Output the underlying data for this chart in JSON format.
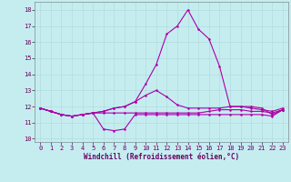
{
  "xlabel": "Windchill (Refroidissement éolien,°C)",
  "bg_color": "#c5edf0",
  "line_color": "#aa00aa",
  "xlim": [
    -0.5,
    23.5
  ],
  "ylim": [
    9.8,
    18.5
  ],
  "yticks": [
    10,
    11,
    12,
    13,
    14,
    15,
    16,
    17,
    18
  ],
  "xticks": [
    0,
    1,
    2,
    3,
    4,
    5,
    6,
    7,
    8,
    9,
    10,
    11,
    12,
    13,
    14,
    15,
    16,
    17,
    18,
    19,
    20,
    21,
    22,
    23
  ],
  "line1_x": [
    0,
    1,
    2,
    3,
    4,
    5,
    6,
    7,
    8,
    9,
    10,
    11,
    12,
    13,
    14,
    15,
    16,
    17,
    18,
    19,
    20,
    21,
    22,
    23
  ],
  "line1_y": [
    11.9,
    11.7,
    11.5,
    11.4,
    11.5,
    11.6,
    10.6,
    10.5,
    10.6,
    11.5,
    11.5,
    11.5,
    11.5,
    11.5,
    11.5,
    11.5,
    11.5,
    11.5,
    11.5,
    11.5,
    11.5,
    11.5,
    11.4,
    11.8
  ],
  "line2_x": [
    0,
    1,
    2,
    3,
    4,
    5,
    6,
    7,
    8,
    9,
    10,
    11,
    12,
    13,
    14,
    15,
    16,
    17,
    18,
    19,
    20,
    21,
    22,
    23
  ],
  "line2_y": [
    11.9,
    11.7,
    11.5,
    11.4,
    11.5,
    11.6,
    11.6,
    11.6,
    11.6,
    11.6,
    11.6,
    11.6,
    11.6,
    11.6,
    11.6,
    11.6,
    11.7,
    11.8,
    11.8,
    11.8,
    11.7,
    11.7,
    11.6,
    11.8
  ],
  "line3_x": [
    0,
    1,
    2,
    3,
    4,
    5,
    6,
    7,
    8,
    9,
    10,
    11,
    12,
    13,
    14,
    15,
    16,
    17,
    18,
    19,
    20,
    21,
    22,
    23
  ],
  "line3_y": [
    11.9,
    11.7,
    11.5,
    11.4,
    11.5,
    11.6,
    11.7,
    11.9,
    12.0,
    12.3,
    12.7,
    13.0,
    12.6,
    12.1,
    11.9,
    11.9,
    11.9,
    11.9,
    12.0,
    12.0,
    11.9,
    11.8,
    11.7,
    11.9
  ],
  "line4_x": [
    0,
    1,
    2,
    3,
    4,
    5,
    6,
    7,
    8,
    9,
    10,
    11,
    12,
    13,
    14,
    15,
    16,
    17,
    18,
    19,
    20,
    21,
    22,
    23
  ],
  "line4_y": [
    11.9,
    11.7,
    11.5,
    11.4,
    11.5,
    11.6,
    11.7,
    11.9,
    12.0,
    12.3,
    13.4,
    14.6,
    16.5,
    17.0,
    18.0,
    16.8,
    16.2,
    14.5,
    12.0,
    12.0,
    12.0,
    11.9,
    11.5,
    11.8
  ],
  "marker_size": 1.8,
  "line_width": 0.8,
  "tick_fontsize": 5.0,
  "xlabel_fontsize": 5.5
}
